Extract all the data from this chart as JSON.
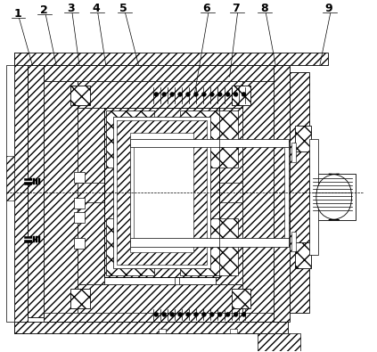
{
  "figsize": [
    4.23,
    3.95
  ],
  "dpi": 100,
  "bg_color": "#ffffff",
  "labels": [
    [
      "1",
      18,
      14,
      35,
      72
    ],
    [
      "2",
      48,
      10,
      62,
      72
    ],
    [
      "3",
      78,
      8,
      88,
      72
    ],
    [
      "4",
      107,
      8,
      118,
      72
    ],
    [
      "5",
      138,
      8,
      155,
      72
    ],
    [
      "6",
      232,
      8,
      218,
      107
    ],
    [
      "7",
      265,
      8,
      258,
      85
    ],
    [
      "8",
      297,
      8,
      310,
      72
    ],
    [
      "9",
      370,
      8,
      360,
      72
    ]
  ]
}
